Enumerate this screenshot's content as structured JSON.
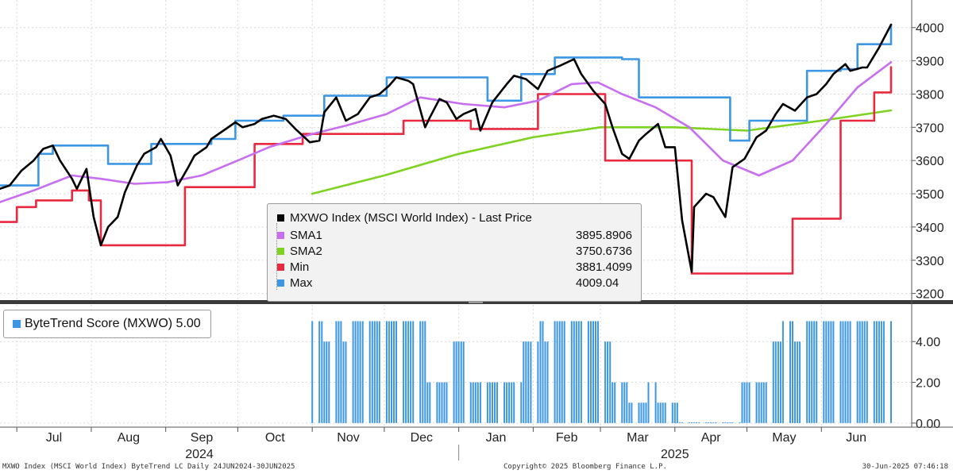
{
  "chart_data": [
    {
      "type": "line",
      "title": "MXWO Index (MSCI World Index) - Last Price",
      "y_axis_side": "right",
      "ylim": [
        3180,
        4040
      ],
      "y_ticks": [
        3200,
        3300,
        3400,
        3500,
        3600,
        3700,
        3800,
        3900,
        4000
      ],
      "x_range": [
        "2024-06-24",
        "2025-06-30"
      ],
      "grid": true,
      "legend_position": "center",
      "series": [
        {
          "name": "MXWO Index (MSCI World Index) - Last Price",
          "color": "#000000",
          "legend_value": "",
          "points": [
            [
              "2024-06-24",
              3515
            ],
            [
              "2024-06-28",
              3525
            ],
            [
              "2024-07-03",
              3570
            ],
            [
              "2024-07-08",
              3600
            ],
            [
              "2024-07-12",
              3635
            ],
            [
              "2024-07-16",
              3645
            ],
            [
              "2024-07-19",
              3600
            ],
            [
              "2024-07-24",
              3545
            ],
            [
              "2024-07-26",
              3515
            ],
            [
              "2024-07-30",
              3575
            ],
            [
              "2024-08-02",
              3430
            ],
            [
              "2024-08-05",
              3345
            ],
            [
              "2024-08-08",
              3400
            ],
            [
              "2024-08-12",
              3430
            ],
            [
              "2024-08-15",
              3505
            ],
            [
              "2024-08-20",
              3585
            ],
            [
              "2024-08-23",
              3620
            ],
            [
              "2024-08-28",
              3640
            ],
            [
              "2024-08-30",
              3665
            ],
            [
              "2024-09-03",
              3615
            ],
            [
              "2024-09-06",
              3525
            ],
            [
              "2024-09-10",
              3575
            ],
            [
              "2024-09-13",
              3615
            ],
            [
              "2024-09-18",
              3640
            ],
            [
              "2024-09-20",
              3665
            ],
            [
              "2024-09-25",
              3690
            ],
            [
              "2024-09-30",
              3715
            ],
            [
              "2024-10-03",
              3700
            ],
            [
              "2024-10-08",
              3710
            ],
            [
              "2024-10-11",
              3725
            ],
            [
              "2024-10-16",
              3735
            ],
            [
              "2024-10-21",
              3725
            ],
            [
              "2024-10-25",
              3695
            ],
            [
              "2024-10-31",
              3655
            ],
            [
              "2024-11-04",
              3660
            ],
            [
              "2024-11-06",
              3745
            ],
            [
              "2024-11-11",
              3790
            ],
            [
              "2024-11-15",
              3720
            ],
            [
              "2024-11-20",
              3740
            ],
            [
              "2024-11-25",
              3790
            ],
            [
              "2024-11-29",
              3800
            ],
            [
              "2024-12-03",
              3825
            ],
            [
              "2024-12-06",
              3850
            ],
            [
              "2024-12-11",
              3840
            ],
            [
              "2024-12-13",
              3830
            ],
            [
              "2024-12-18",
              3700
            ],
            [
              "2024-12-20",
              3730
            ],
            [
              "2024-12-24",
              3785
            ],
            [
              "2024-12-27",
              3775
            ],
            [
              "2024-12-31",
              3725
            ],
            [
              "2025-01-03",
              3740
            ],
            [
              "2025-01-08",
              3755
            ],
            [
              "2025-01-10",
              3690
            ],
            [
              "2025-01-15",
              3775
            ],
            [
              "2025-01-21",
              3830
            ],
            [
              "2025-01-24",
              3855
            ],
            [
              "2025-01-29",
              3845
            ],
            [
              "2025-02-03",
              3815
            ],
            [
              "2025-02-07",
              3870
            ],
            [
              "2025-02-12",
              3885
            ],
            [
              "2025-02-18",
              3905
            ],
            [
              "2025-02-21",
              3860
            ],
            [
              "2025-02-26",
              3810
            ],
            [
              "2025-03-03",
              3770
            ],
            [
              "2025-03-06",
              3700
            ],
            [
              "2025-03-10",
              3620
            ],
            [
              "2025-03-13",
              3605
            ],
            [
              "2025-03-17",
              3660
            ],
            [
              "2025-03-20",
              3680
            ],
            [
              "2025-03-25",
              3710
            ],
            [
              "2025-03-28",
              3640
            ],
            [
              "2025-04-01",
              3640
            ],
            [
              "2025-04-04",
              3420
            ],
            [
              "2025-04-08",
              3265
            ],
            [
              "2025-04-09",
              3460
            ],
            [
              "2025-04-14",
              3500
            ],
            [
              "2025-04-17",
              3490
            ],
            [
              "2025-04-22",
              3430
            ],
            [
              "2025-04-25",
              3580
            ],
            [
              "2025-04-30",
              3605
            ],
            [
              "2025-05-05",
              3670
            ],
            [
              "2025-05-09",
              3690
            ],
            [
              "2025-05-13",
              3740
            ],
            [
              "2025-05-16",
              3770
            ],
            [
              "2025-05-21",
              3750
            ],
            [
              "2025-05-26",
              3790
            ],
            [
              "2025-05-30",
              3800
            ],
            [
              "2025-06-03",
              3830
            ],
            [
              "2025-06-06",
              3860
            ],
            [
              "2025-06-11",
              3890
            ],
            [
              "2025-06-13",
              3870
            ],
            [
              "2025-06-18",
              3880
            ],
            [
              "2025-06-20",
              3880
            ],
            [
              "2025-06-25",
              3940
            ],
            [
              "2025-06-30",
              4009
            ]
          ]
        },
        {
          "name": "SMA1",
          "color": "#c86ef0",
          "legend_value": "3895.8906",
          "points": [
            [
              "2024-06-24",
              3475
            ],
            [
              "2024-07-08",
              3510
            ],
            [
              "2024-07-24",
              3555
            ],
            [
              "2024-08-05",
              3545
            ],
            [
              "2024-08-19",
              3530
            ],
            [
              "2024-09-02",
              3535
            ],
            [
              "2024-09-16",
              3555
            ],
            [
              "2024-10-01",
              3600
            ],
            [
              "2024-10-14",
              3640
            ],
            [
              "2024-11-01",
              3680
            ],
            [
              "2024-11-15",
              3705
            ],
            [
              "2024-12-02",
              3740
            ],
            [
              "2024-12-16",
              3790
            ],
            [
              "2025-01-03",
              3770
            ],
            [
              "2025-01-20",
              3760
            ],
            [
              "2025-02-03",
              3780
            ],
            [
              "2025-02-17",
              3830
            ],
            [
              "2025-02-28",
              3835
            ],
            [
              "2025-03-10",
              3800
            ],
            [
              "2025-03-24",
              3760
            ],
            [
              "2025-04-07",
              3700
            ],
            [
              "2025-04-21",
              3600
            ],
            [
              "2025-05-06",
              3555
            ],
            [
              "2025-05-20",
              3600
            ],
            [
              "2025-06-03",
              3710
            ],
            [
              "2025-06-16",
              3820
            ],
            [
              "2025-06-30",
              3896
            ]
          ]
        },
        {
          "name": "SMA2",
          "color": "#7ed321",
          "legend_value": "3750.6736",
          "points": [
            [
              "2024-11-01",
              3500
            ],
            [
              "2024-12-01",
              3555
            ],
            [
              "2025-01-01",
              3620
            ],
            [
              "2025-02-01",
              3670
            ],
            [
              "2025-03-01",
              3700
            ],
            [
              "2025-04-01",
              3700
            ],
            [
              "2025-05-01",
              3690
            ],
            [
              "2025-06-01",
              3720
            ],
            [
              "2025-06-30",
              3751
            ]
          ]
        },
        {
          "name": "Min",
          "color": "#e8293f",
          "legend_value": "3881.4099",
          "points": [
            [
              "2024-06-24",
              3415
            ],
            [
              "2024-07-01",
              3460
            ],
            [
              "2024-07-09",
              3480
            ],
            [
              "2024-07-24",
              3510
            ],
            [
              "2024-07-31",
              3480
            ],
            [
              "2024-08-05",
              3345
            ],
            [
              "2024-09-03",
              3345
            ],
            [
              "2024-09-09",
              3520
            ],
            [
              "2024-10-01",
              3520
            ],
            [
              "2024-10-08",
              3650
            ],
            [
              "2024-10-28",
              3680
            ],
            [
              "2024-12-02",
              3680
            ],
            [
              "2024-12-09",
              3720
            ],
            [
              "2025-01-01",
              3720
            ],
            [
              "2025-01-06",
              3695
            ],
            [
              "2025-01-20",
              3695
            ],
            [
              "2025-02-03",
              3800
            ],
            [
              "2025-02-24",
              3800
            ],
            [
              "2025-03-03",
              3600
            ],
            [
              "2025-03-31",
              3600
            ],
            [
              "2025-04-08",
              3260
            ],
            [
              "2025-05-15",
              3260
            ],
            [
              "2025-05-20",
              3425
            ],
            [
              "2025-06-02",
              3425
            ],
            [
              "2025-06-09",
              3720
            ],
            [
              "2025-06-23",
              3805
            ],
            [
              "2025-06-30",
              3881
            ]
          ]
        },
        {
          "name": "Max",
          "color": "#3d97e4",
          "legend_value": "4009.04",
          "points": [
            [
              "2024-06-24",
              3525
            ],
            [
              "2024-07-01",
              3525
            ],
            [
              "2024-07-10",
              3620
            ],
            [
              "2024-07-16",
              3645
            ],
            [
              "2024-08-01",
              3645
            ],
            [
              "2024-08-08",
              3590
            ],
            [
              "2024-08-26",
              3650
            ],
            [
              "2024-09-20",
              3665
            ],
            [
              "2024-09-30",
              3720
            ],
            [
              "2024-10-20",
              3735
            ],
            [
              "2024-11-06",
              3795
            ],
            [
              "2024-12-02",
              3850
            ],
            [
              "2025-01-13",
              3780
            ],
            [
              "2025-01-27",
              3860
            ],
            [
              "2025-02-10",
              3910
            ],
            [
              "2025-03-10",
              3905
            ],
            [
              "2025-03-17",
              3790
            ],
            [
              "2025-04-14",
              3790
            ],
            [
              "2025-04-24",
              3660
            ],
            [
              "2025-05-02",
              3720
            ],
            [
              "2025-05-26",
              3870
            ],
            [
              "2025-06-09",
              3875
            ],
            [
              "2025-06-16",
              3950
            ],
            [
              "2025-06-25",
              3950
            ],
            [
              "2025-06-30",
              4009
            ]
          ]
        }
      ]
    },
    {
      "type": "bar",
      "title": "ByteTrend Score (MXWO) 5.00",
      "legend_label": "ByteTrend Score (MXWO) 5.00",
      "color": "#3d97e4",
      "y_axis_side": "right",
      "ylim": [
        -0.2,
        5.8
      ],
      "y_ticks": [
        "0.00",
        "2.00",
        "4.00"
      ],
      "segments": [
        {
          "from": "2024-11-01",
          "to": "2024-11-05",
          "value": 5
        },
        {
          "from": "2024-11-06",
          "to": "2024-11-08",
          "value": 4
        },
        {
          "from": "2024-11-09",
          "to": "2024-11-13",
          "value": 5
        },
        {
          "from": "2024-11-14",
          "to": "2024-11-15",
          "value": 4
        },
        {
          "from": "2024-11-16",
          "to": "2024-12-18",
          "value": 5
        },
        {
          "from": "2024-12-19",
          "to": "2024-12-29",
          "value": 2
        },
        {
          "from": "2024-12-30",
          "to": "2025-01-03",
          "value": 4
        },
        {
          "from": "2025-01-04",
          "to": "2025-01-27",
          "value": 2
        },
        {
          "from": "2025-01-28",
          "to": "2025-02-03",
          "value": 4
        },
        {
          "from": "2025-02-04",
          "to": "2025-02-05",
          "value": 5
        },
        {
          "from": "2025-02-06",
          "to": "2025-02-07",
          "value": 4
        },
        {
          "from": "2025-02-08",
          "to": "2025-02-28",
          "value": 5
        },
        {
          "from": "2025-03-01",
          "to": "2025-03-05",
          "value": 4
        },
        {
          "from": "2025-03-06",
          "to": "2025-03-12",
          "value": 2
        },
        {
          "from": "2025-03-13",
          "to": "2025-03-20",
          "value": 1
        },
        {
          "from": "2025-03-21",
          "to": "2025-03-24",
          "value": 2
        },
        {
          "from": "2025-03-25",
          "to": "2025-04-02",
          "value": 1
        },
        {
          "from": "2025-04-03",
          "to": "2025-04-06",
          "value": 0
        },
        {
          "from": "2025-04-07",
          "to": "2025-04-28",
          "value": 0
        },
        {
          "from": "2025-04-29",
          "to": "2025-05-10",
          "value": 2
        },
        {
          "from": "2025-05-11",
          "to": "2025-05-15",
          "value": 4
        },
        {
          "from": "2025-05-16",
          "to": "2025-05-20",
          "value": 5
        },
        {
          "from": "2025-05-21",
          "to": "2025-05-23",
          "value": 4
        },
        {
          "from": "2025-05-24",
          "to": "2025-06-30",
          "value": 5
        }
      ]
    }
  ],
  "x_axis": {
    "months": [
      "Jul",
      "Aug",
      "Sep",
      "Oct",
      "Nov",
      "Dec",
      "Jan",
      "Feb",
      "Mar",
      "Apr",
      "May",
      "Jun"
    ],
    "month_dates": [
      "2024-07-01",
      "2024-08-01",
      "2024-09-01",
      "2024-10-01",
      "2024-11-01",
      "2024-12-01",
      "2025-01-01",
      "2025-02-01",
      "2025-03-01",
      "2025-04-01",
      "2025-05-01",
      "2025-06-01"
    ],
    "years": [
      "2024",
      "2025"
    ]
  },
  "footer": {
    "left": "MXWO Index (MSCI World Index) ByteTrend LC  Daily 24JUN2024-30JUN2025",
    "center": "Copyright© 2025 Bloomberg Finance L.P.",
    "right": "30-Jun-2025 07:46:18"
  }
}
